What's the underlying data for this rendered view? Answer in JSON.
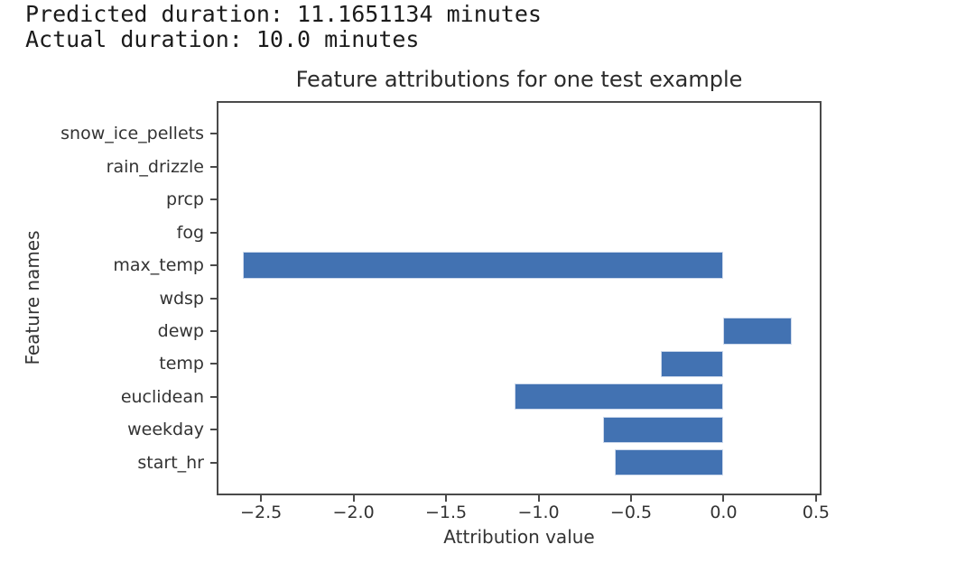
{
  "output_text": {
    "line1": "Predicted duration: 11.1651134 minutes",
    "line2": "Actual duration: 10.0 minutes"
  },
  "chart_data": {
    "type": "bar",
    "orientation": "horizontal",
    "title": "Feature attributions for one test example",
    "xlabel": "Attribution value",
    "ylabel": "Feature names",
    "categories_top_to_bottom": [
      "snow_ice_pellets",
      "rain_drizzle",
      "prcp",
      "fog",
      "max_temp",
      "wdsp",
      "dewp",
      "temp",
      "euclidean",
      "weekday",
      "start_hr"
    ],
    "values": [
      0,
      0,
      0,
      0,
      -2.6,
      0,
      0.37,
      -0.34,
      -1.13,
      -0.65,
      -0.59
    ],
    "xlim": [
      -2.73,
      0.52
    ],
    "x_ticks": [
      -2.5,
      -2.0,
      -1.5,
      -1.0,
      -0.5,
      0.0,
      0.5
    ],
    "x_tick_labels": [
      "−2.5",
      "−2.0",
      "−1.5",
      "−1.0",
      "−0.5",
      "0.0",
      "0.5"
    ],
    "bar_color": "#4272B2",
    "bar_edge_color": "#cdd9ec",
    "axis_color": "#4a4a4a",
    "grid": false,
    "legend": null
  }
}
